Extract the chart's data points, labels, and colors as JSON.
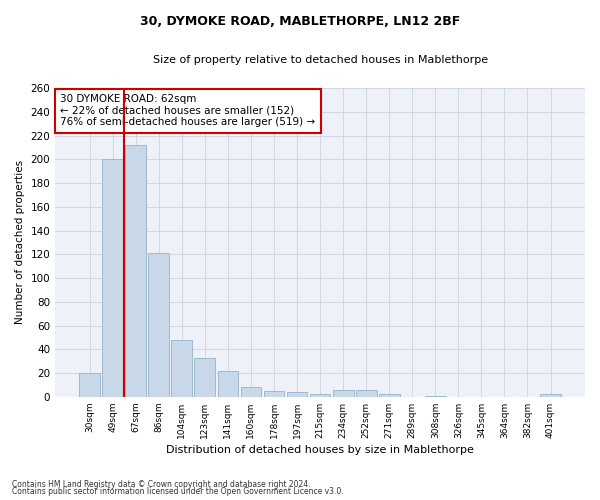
{
  "title1": "30, DYMOKE ROAD, MABLETHORPE, LN12 2BF",
  "title2": "Size of property relative to detached houses in Mablethorpe",
  "xlabel": "Distribution of detached houses by size in Mablethorpe",
  "ylabel": "Number of detached properties",
  "categories": [
    "30sqm",
    "49sqm",
    "67sqm",
    "86sqm",
    "104sqm",
    "123sqm",
    "141sqm",
    "160sqm",
    "178sqm",
    "197sqm",
    "215sqm",
    "234sqm",
    "252sqm",
    "271sqm",
    "289sqm",
    "308sqm",
    "326sqm",
    "345sqm",
    "364sqm",
    "382sqm",
    "401sqm"
  ],
  "values": [
    20,
    200,
    212,
    121,
    48,
    33,
    22,
    8,
    5,
    4,
    2,
    6,
    6,
    2,
    0,
    1,
    0,
    0,
    0,
    0,
    2
  ],
  "bar_color": "#c8d8e8",
  "bar_edge_color": "#a0b8cc",
  "red_line_x": 1.5,
  "annotation_text": "30 DYMOKE ROAD: 62sqm\n← 22% of detached houses are smaller (152)\n76% of semi-detached houses are larger (519) →",
  "annotation_box_color": "#ffffff",
  "annotation_box_edge": "#cc0000",
  "red_line_color": "#cc0000",
  "grid_color": "#d0d8e8",
  "bg_color": "#eef2f8",
  "ylim": [
    0,
    260
  ],
  "yticks": [
    0,
    20,
    40,
    60,
    80,
    100,
    120,
    140,
    160,
    180,
    200,
    220,
    240,
    260
  ],
  "footer1": "Contains HM Land Registry data © Crown copyright and database right 2024.",
  "footer2": "Contains public sector information licensed under the Open Government Licence v3.0."
}
